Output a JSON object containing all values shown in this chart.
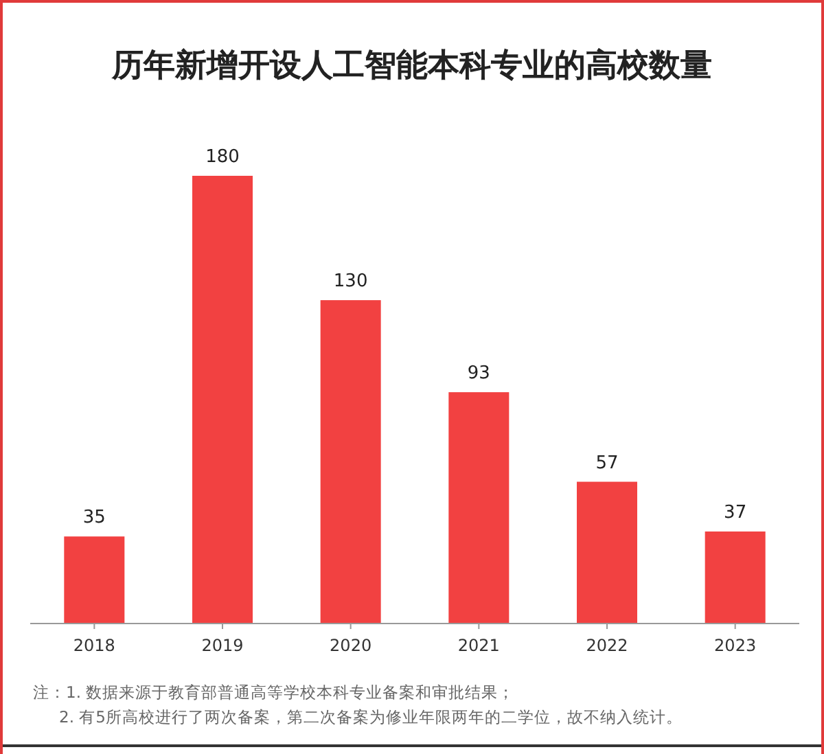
{
  "chart_data": {
    "type": "bar",
    "title": "历年新增开设人工智能本科专业的高校数量",
    "categories": [
      "2018",
      "2019",
      "2020",
      "2021",
      "2022",
      "2023"
    ],
    "values": [
      35,
      180,
      130,
      93,
      57,
      37
    ],
    "color": "#f24141",
    "data_labels": true,
    "annotations": [
      "注：1. 数据来源于教育部普通高等学校本科专业备案和审批结果；",
      "2. 有5所高校进行了两次备案，第二次备案为修业年限两年的二学位，故不纳入统计。"
    ]
  }
}
